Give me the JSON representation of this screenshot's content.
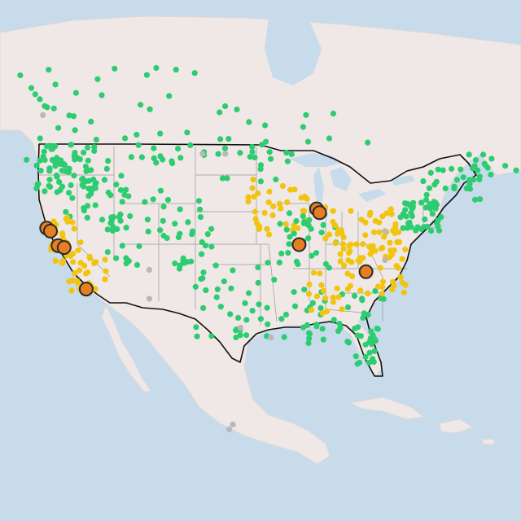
{
  "map": {
    "name": "us-air-quality-station-map",
    "colors": {
      "water": "#c7dbeb",
      "land": "#efe8e6",
      "border": "#111111",
      "state_lines": "#9a9a9a",
      "good": "#2ecc71",
      "moderate": "#f1c40f",
      "unhealthy_sensitive": "#e67e22",
      "no_data": "#b8b8b8"
    },
    "levels": [
      "good",
      "moderate",
      "unhealthy_sensitive",
      "no_data"
    ],
    "markers": [
      {
        "lat": 40.3,
        "lon": -123.5,
        "level": "unhealthy_sensitive"
      },
      {
        "lat": 40.0,
        "lon": -123.0,
        "level": "unhealthy_sensitive"
      },
      {
        "lat": 38.5,
        "lon": -122.0,
        "level": "unhealthy_sensitive"
      },
      {
        "lat": 38.3,
        "lon": -121.2,
        "level": "unhealthy_sensitive"
      },
      {
        "lat": 34.0,
        "lon": -118.3,
        "level": "unhealthy_sensitive"
      },
      {
        "lat": 42.3,
        "lon": -88.0,
        "level": "unhealthy_sensitive"
      },
      {
        "lat": 41.9,
        "lon": -87.6,
        "level": "unhealthy_sensitive"
      },
      {
        "lat": 38.6,
        "lon": -90.3,
        "level": "unhealthy_sensitive"
      },
      {
        "lat": 35.8,
        "lon": -81.5,
        "level": "unhealthy_sensitive"
      }
    ]
  }
}
